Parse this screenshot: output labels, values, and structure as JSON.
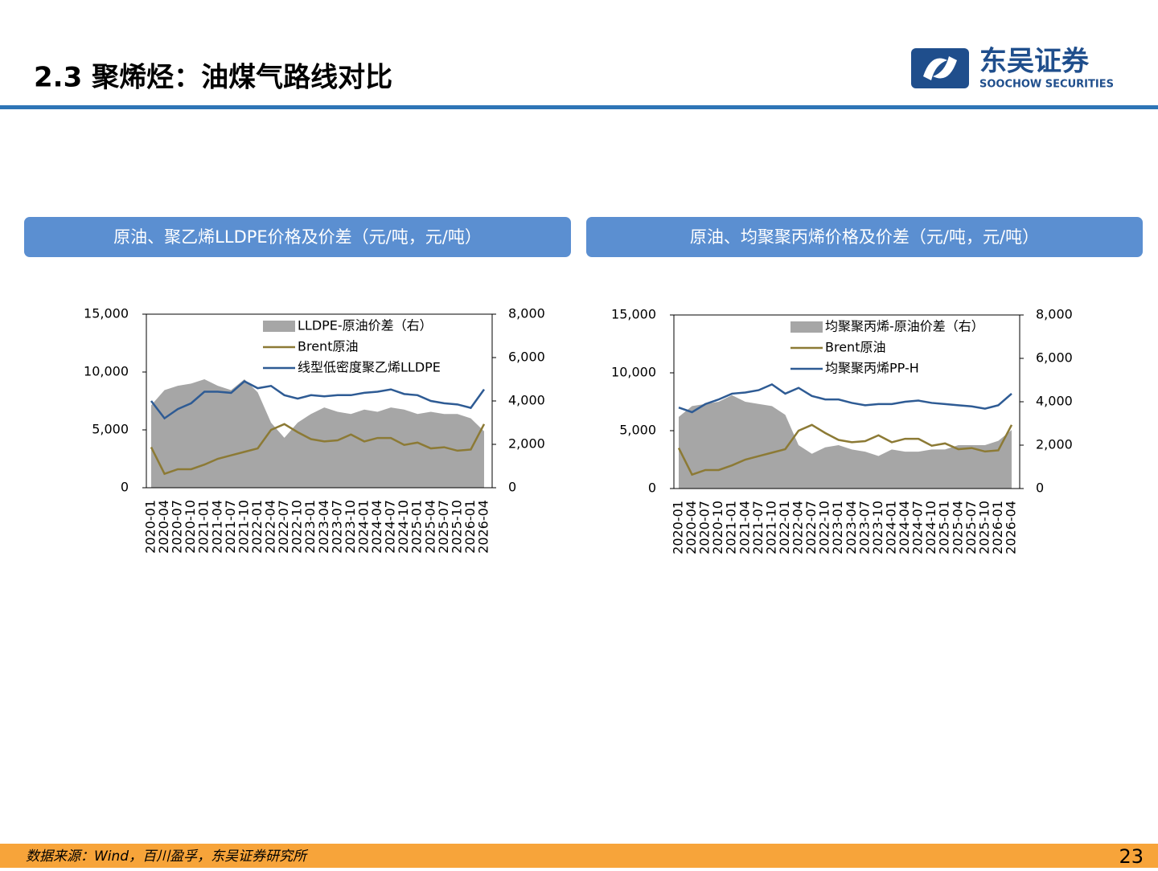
{
  "header": {
    "title": "2.3 聚烯烃：油煤气路线对比",
    "logo_cn": "东吴证券",
    "logo_en": "SOOCHOW SECURITIES"
  },
  "panels": [
    "原油、聚乙烯LLDPE价格及价差（元/吨，元/吨）",
    "原油、均聚聚丙烯价格及价差（元/吨，元/吨）"
  ],
  "chart_data": [
    {
      "type": "line",
      "x": [
        "2020-01",
        "2020-04",
        "2020-07",
        "2020-10",
        "2021-01",
        "2021-04",
        "2021-07",
        "2021-10",
        "2022-01",
        "2022-04",
        "2022-07",
        "2022-10",
        "2023-01",
        "2023-04",
        "2023-07",
        "2023-10",
        "2024-01",
        "2024-04",
        "2024-07",
        "2024-10",
        "2025-01",
        "2025-04",
        "2025-07",
        "2025-10",
        "2026-01",
        "2026-04"
      ],
      "series": [
        {
          "name": "LLDPE-原油价差（右）",
          "color": "#a6a6a6",
          "axis": "y2",
          "values": [
            3800,
            4500,
            4700,
            4800,
            5000,
            4700,
            4500,
            5000,
            4400,
            3000,
            2300,
            3000,
            3400,
            3700,
            3500,
            3400,
            3600,
            3500,
            3700,
            3600,
            3400,
            3500,
            3400,
            3400,
            3200,
            2600
          ]
        },
        {
          "name": "Brent原油",
          "color": "#8c7a35",
          "values": [
            3500,
            1200,
            1600,
            1600,
            2000,
            2500,
            2800,
            3100,
            3400,
            5000,
            5500,
            4800,
            4200,
            4000,
            4100,
            4600,
            4000,
            4300,
            4300,
            3700,
            3900,
            3400,
            3500,
            3200,
            3300,
            5500
          ]
        },
        {
          "name": "线型低密度聚乙烯LLDPE",
          "color": "#2e5b94",
          "values": [
            7500,
            6000,
            6800,
            7300,
            8300,
            8300,
            8200,
            9200,
            8600,
            8800,
            8000,
            7700,
            8000,
            7900,
            8000,
            8000,
            8200,
            8300,
            8500,
            8100,
            8000,
            7500,
            7300,
            7200,
            6900,
            8500
          ]
        }
      ],
      "ylim": [
        0,
        15000
      ],
      "yticks": [
        0,
        {
          "value": 5000,
          "label": "5,000"
        },
        {
          "value": 10000,
          "label": "10,000"
        },
        {
          "value": 15000,
          "label": "15,000"
        }
      ],
      "y2lim": [
        0,
        8000
      ],
      "y2ticks": [
        0,
        {
          "value": 2000,
          "label": "2,000"
        },
        {
          "value": 4000,
          "label": "4,000"
        },
        {
          "value": 6000,
          "label": "6,000"
        },
        {
          "value": 8000,
          "label": "8,000"
        }
      ]
    },
    {
      "type": "line",
      "x": [
        "2020-01",
        "2020-04",
        "2020-07",
        "2020-10",
        "2021-01",
        "2021-04",
        "2021-07",
        "2021-10",
        "2022-01",
        "2022-04",
        "2022-07",
        "2022-10",
        "2023-01",
        "2023-04",
        "2023-07",
        "2023-10",
        "2024-01",
        "2024-04",
        "2024-07",
        "2024-10",
        "2025-01",
        "2025-04",
        "2025-07",
        "2025-10",
        "2026-01",
        "2026-04"
      ],
      "series": [
        {
          "name": "均聚聚丙烯-原油价差（右）",
          "color": "#a6a6a6",
          "axis": "y2",
          "values": [
            3300,
            3800,
            3900,
            4000,
            4300,
            4000,
            3900,
            3800,
            3400,
            2000,
            1600,
            1900,
            2000,
            1800,
            1700,
            1500,
            1800,
            1700,
            1700,
            1800,
            1800,
            2000,
            2000,
            2000,
            2200,
            2700
          ]
        },
        {
          "name": "Brent原油",
          "color": "#8c7a35",
          "values": [
            3500,
            1200,
            1600,
            1600,
            2000,
            2500,
            2800,
            3100,
            3400,
            5000,
            5500,
            4800,
            4200,
            4000,
            4100,
            4600,
            4000,
            4300,
            4300,
            3700,
            3900,
            3400,
            3500,
            3200,
            3300,
            5500
          ]
        },
        {
          "name": "均聚聚丙烯PP-H",
          "color": "#2e5b94",
          "values": [
            7000,
            6600,
            7300,
            7700,
            8200,
            8300,
            8500,
            9000,
            8200,
            8700,
            8000,
            7700,
            7700,
            7400,
            7200,
            7300,
            7300,
            7500,
            7600,
            7400,
            7300,
            7200,
            7100,
            6900,
            7200,
            8200
          ]
        }
      ],
      "ylim": [
        0,
        15000
      ],
      "yticks": [
        0,
        {
          "value": 5000,
          "label": "5,000"
        },
        {
          "value": 10000,
          "label": "10,000"
        },
        {
          "value": 15000,
          "label": "15,000"
        }
      ],
      "y2lim": [
        0,
        8000
      ],
      "y2ticks": [
        0,
        {
          "value": 2000,
          "label": "2,000"
        },
        {
          "value": 4000,
          "label": "4,000"
        },
        {
          "value": 6000,
          "label": "6,000"
        },
        {
          "value": 8000,
          "label": "8,000"
        }
      ]
    }
  ],
  "footer": {
    "source": "数据来源：Wind，百川盈孚，东吴证券研究所",
    "page": "23"
  }
}
